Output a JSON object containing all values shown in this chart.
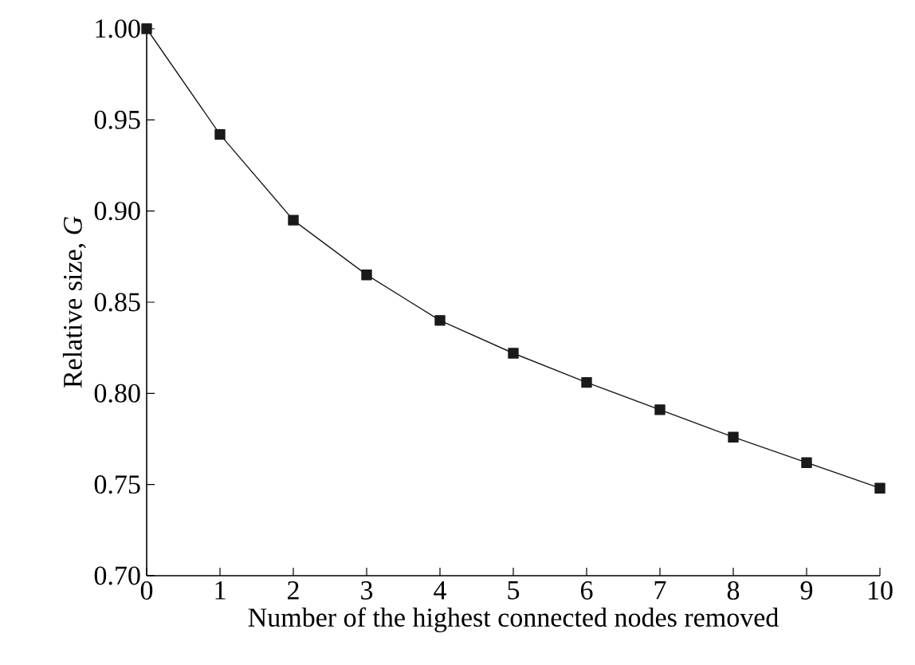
{
  "chart_data": {
    "type": "line",
    "xlabel": "Number of the highest connected nodes removed",
    "ylabel": "Relative size, *G*",
    "x": [
      0,
      1,
      2,
      3,
      4,
      5,
      6,
      7,
      8,
      9,
      10
    ],
    "series": [
      {
        "color": "#1a1a1a",
        "values": [
          1.0,
          0.942,
          0.895,
          0.865,
          0.84,
          0.822,
          0.806,
          0.791,
          0.776,
          0.762,
          0.748
        ]
      }
    ],
    "xlim": [
      0,
      10
    ],
    "ylim": [
      0.7,
      1.0
    ],
    "xticks": [
      0,
      1,
      2,
      3,
      4,
      5,
      6,
      7,
      8,
      9,
      10
    ],
    "yticks": [
      {
        "value": 0.7,
        "label": "0.70"
      },
      {
        "value": 0.75,
        "label": "0.75"
      },
      {
        "value": 0.8,
        "label": "0.80"
      },
      {
        "value": 0.85,
        "label": "0.85"
      },
      {
        "value": 0.9,
        "label": "0.90"
      },
      {
        "value": 0.95,
        "label": "0.95"
      },
      {
        "value": 1.0,
        "label": "1.00"
      }
    ],
    "marker": "square",
    "line_style": "solid",
    "grid": false
  }
}
